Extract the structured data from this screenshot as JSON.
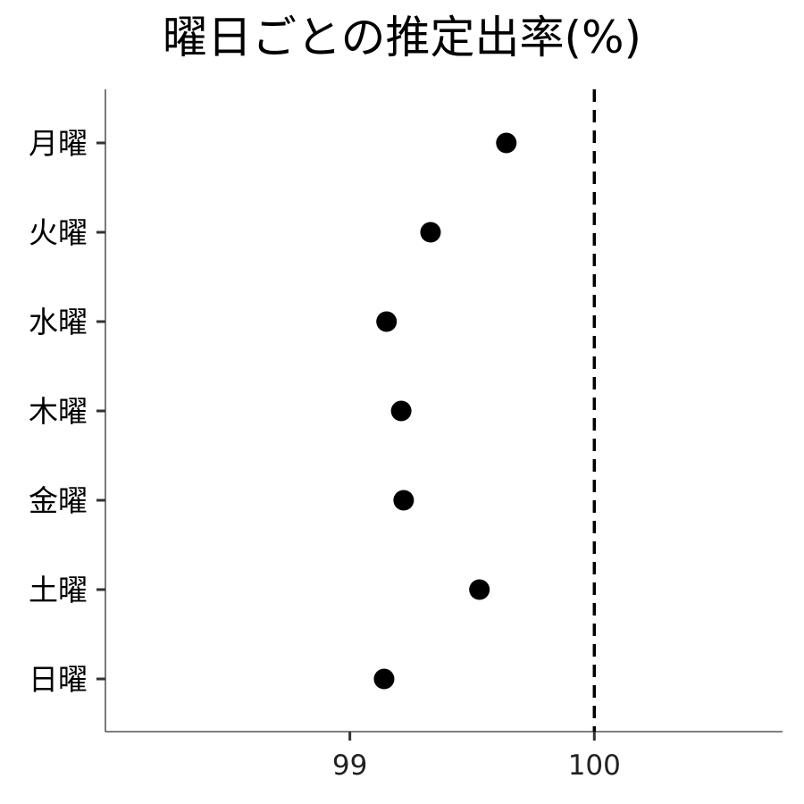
{
  "chart_data": {
    "type": "scatter",
    "title": "曜日ごとの推定出率(%)",
    "xlabel": "",
    "ylabel": "",
    "categories": [
      "月曜",
      "火曜",
      "水曜",
      "木曜",
      "金曜",
      "土曜",
      "日曜"
    ],
    "values": [
      99.64,
      99.33,
      99.15,
      99.21,
      99.22,
      99.53,
      99.14
    ],
    "xlim": [
      98.0,
      100.77
    ],
    "xticks": [
      99,
      100
    ],
    "reference_line": {
      "x": 100,
      "style": "dashed"
    },
    "grid": false,
    "point_color": "#000000"
  }
}
